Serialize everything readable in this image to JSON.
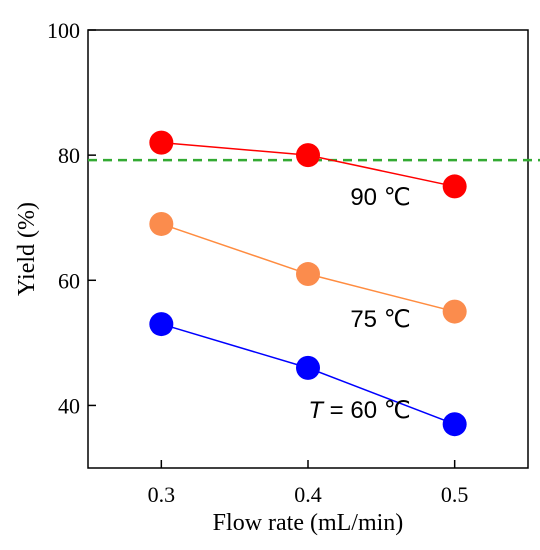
{
  "chart_data": {
    "type": "line",
    "xlabel": "Flow rate (mL/min)",
    "ylabel": "Yield (%)",
    "xlim": [
      0.25,
      0.55
    ],
    "ylim": [
      30,
      100
    ],
    "x_ticks": [
      "0.3",
      "0.4",
      "0.5"
    ],
    "y_ticks": [
      "40",
      "60",
      "80",
      "100"
    ],
    "grid": false,
    "x": [
      0.3,
      0.4,
      0.5
    ],
    "series": [
      {
        "name": "90 ℃",
        "label_italic_prefix": "",
        "values": [
          82,
          80,
          75
        ],
        "color": "#ff0000",
        "marker_color": "#ff0000"
      },
      {
        "name": "75 ℃",
        "label_italic_prefix": "",
        "values": [
          69,
          61,
          55
        ],
        "color": "#ff8c40",
        "marker_color": "#fb8c4d"
      },
      {
        "name": "= 60 ℃",
        "label_italic_prefix": "T",
        "values": [
          53,
          46,
          37
        ],
        "color": "#0000ff",
        "marker_color": "#0000ff"
      }
    ],
    "reference_line": {
      "y": 79.2,
      "style": "dashed",
      "color": "#33aa33"
    }
  }
}
